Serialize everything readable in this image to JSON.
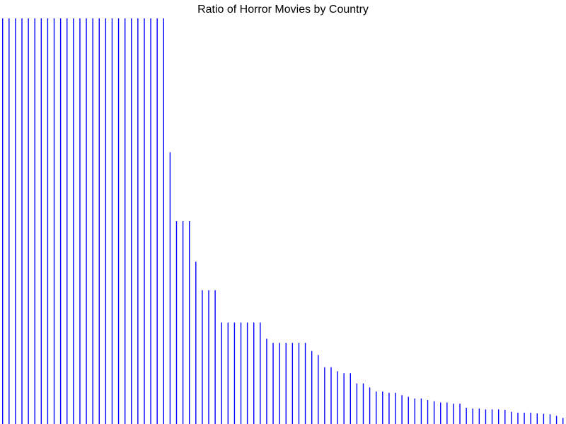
{
  "chart_data": {
    "type": "bar",
    "title": "Ratio of Horror Movies by Country",
    "xlabel": "",
    "ylabel": "",
    "ylim": [
      0,
      1
    ],
    "grid": false,
    "legend": "none",
    "bar_color": "#0000ff",
    "values": [
      1,
      1,
      1,
      1,
      1,
      1,
      1,
      1,
      1,
      1,
      1,
      1,
      1,
      1,
      1,
      1,
      1,
      1,
      1,
      1,
      1,
      1,
      1,
      1,
      1,
      1,
      0.67,
      0.5,
      0.5,
      0.5,
      0.4,
      0.33,
      0.33,
      0.33,
      0.25,
      0.25,
      0.25,
      0.25,
      0.25,
      0.25,
      0.25,
      0.21,
      0.2,
      0.2,
      0.2,
      0.2,
      0.2,
      0.2,
      0.18,
      0.17,
      0.14,
      0.14,
      0.13,
      0.125,
      0.125,
      0.1,
      0.1,
      0.09,
      0.08,
      0.08,
      0.077,
      0.077,
      0.071,
      0.067,
      0.063,
      0.063,
      0.059,
      0.056,
      0.053,
      0.053,
      0.05,
      0.05,
      0.04,
      0.038,
      0.038,
      0.036,
      0.036,
      0.036,
      0.035,
      0.03,
      0.028,
      0.028,
      0.028,
      0.026,
      0.025,
      0.024,
      0.02,
      0.015
    ]
  }
}
